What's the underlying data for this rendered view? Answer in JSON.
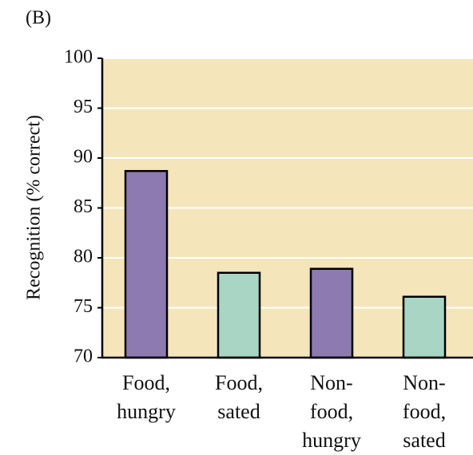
{
  "chart_data": {
    "type": "bar",
    "panel_label": "(B)",
    "y_label": "Recognition (% correct)",
    "categories": [
      "Food,\nhungry",
      "Food,\nsated",
      "Non-\nfood,\nhungry",
      "Non-\nfood,\nsated"
    ],
    "values": [
      88.7,
      78.5,
      78.9,
      76.1
    ],
    "colors": [
      "#8c7ab0",
      "#a9d6c4",
      "#8c7ab0",
      "#a9d6c4"
    ],
    "ylim": [
      70,
      100
    ],
    "yticks": [
      70,
      75,
      80,
      85,
      90,
      95,
      100
    ],
    "grid": true
  }
}
